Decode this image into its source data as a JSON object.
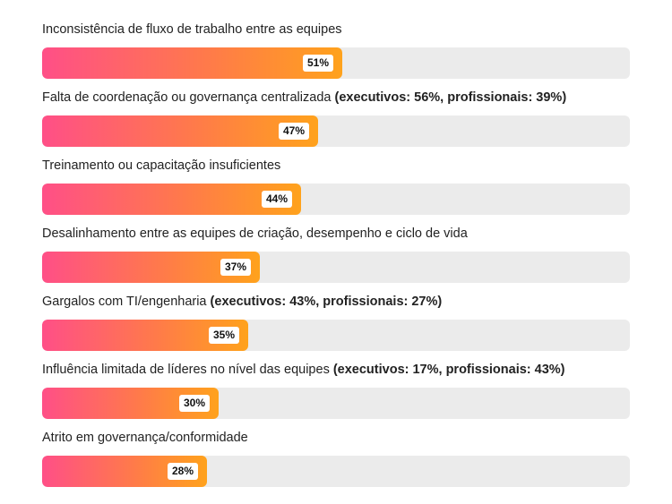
{
  "chart_data": {
    "type": "bar",
    "orientation": "horizontal",
    "categories": [
      {
        "label": "Inconsistência de fluxo de trabalho entre as equipes",
        "note": ""
      },
      {
        "label": "Falta de coordenação ou governança centralizada",
        "note": "(executivos: 56%, profissionais: 39%)"
      },
      {
        "label": "Treinamento ou capacitação insuficientes",
        "note": ""
      },
      {
        "label": "Desalinhamento entre as equipes de criação, desempenho e ciclo de vida",
        "note": ""
      },
      {
        "label": "Gargalos com TI/engenharia",
        "note": "(executivos: 43%, profissionais: 27%)"
      },
      {
        "label": "Influência limitada de líderes no nível das equipes",
        "note": "(executivos: 17%, profissionais: 43%)"
      },
      {
        "label": "Atrito em governança/conformidade",
        "note": ""
      }
    ],
    "values": [
      51,
      47,
      44,
      37,
      35,
      30,
      28
    ],
    "value_labels": [
      "51%",
      "47%",
      "44%",
      "37%",
      "35%",
      "30%",
      "28%"
    ],
    "xlim": [
      0,
      100
    ],
    "unit": "%",
    "colors": {
      "gradient_start": "#ff4f87",
      "gradient_mid": "#ff7a4a",
      "gradient_end": "#ffa21c",
      "track": "#ebebeb",
      "badge_background": "#ffffff"
    },
    "grid": false
  }
}
